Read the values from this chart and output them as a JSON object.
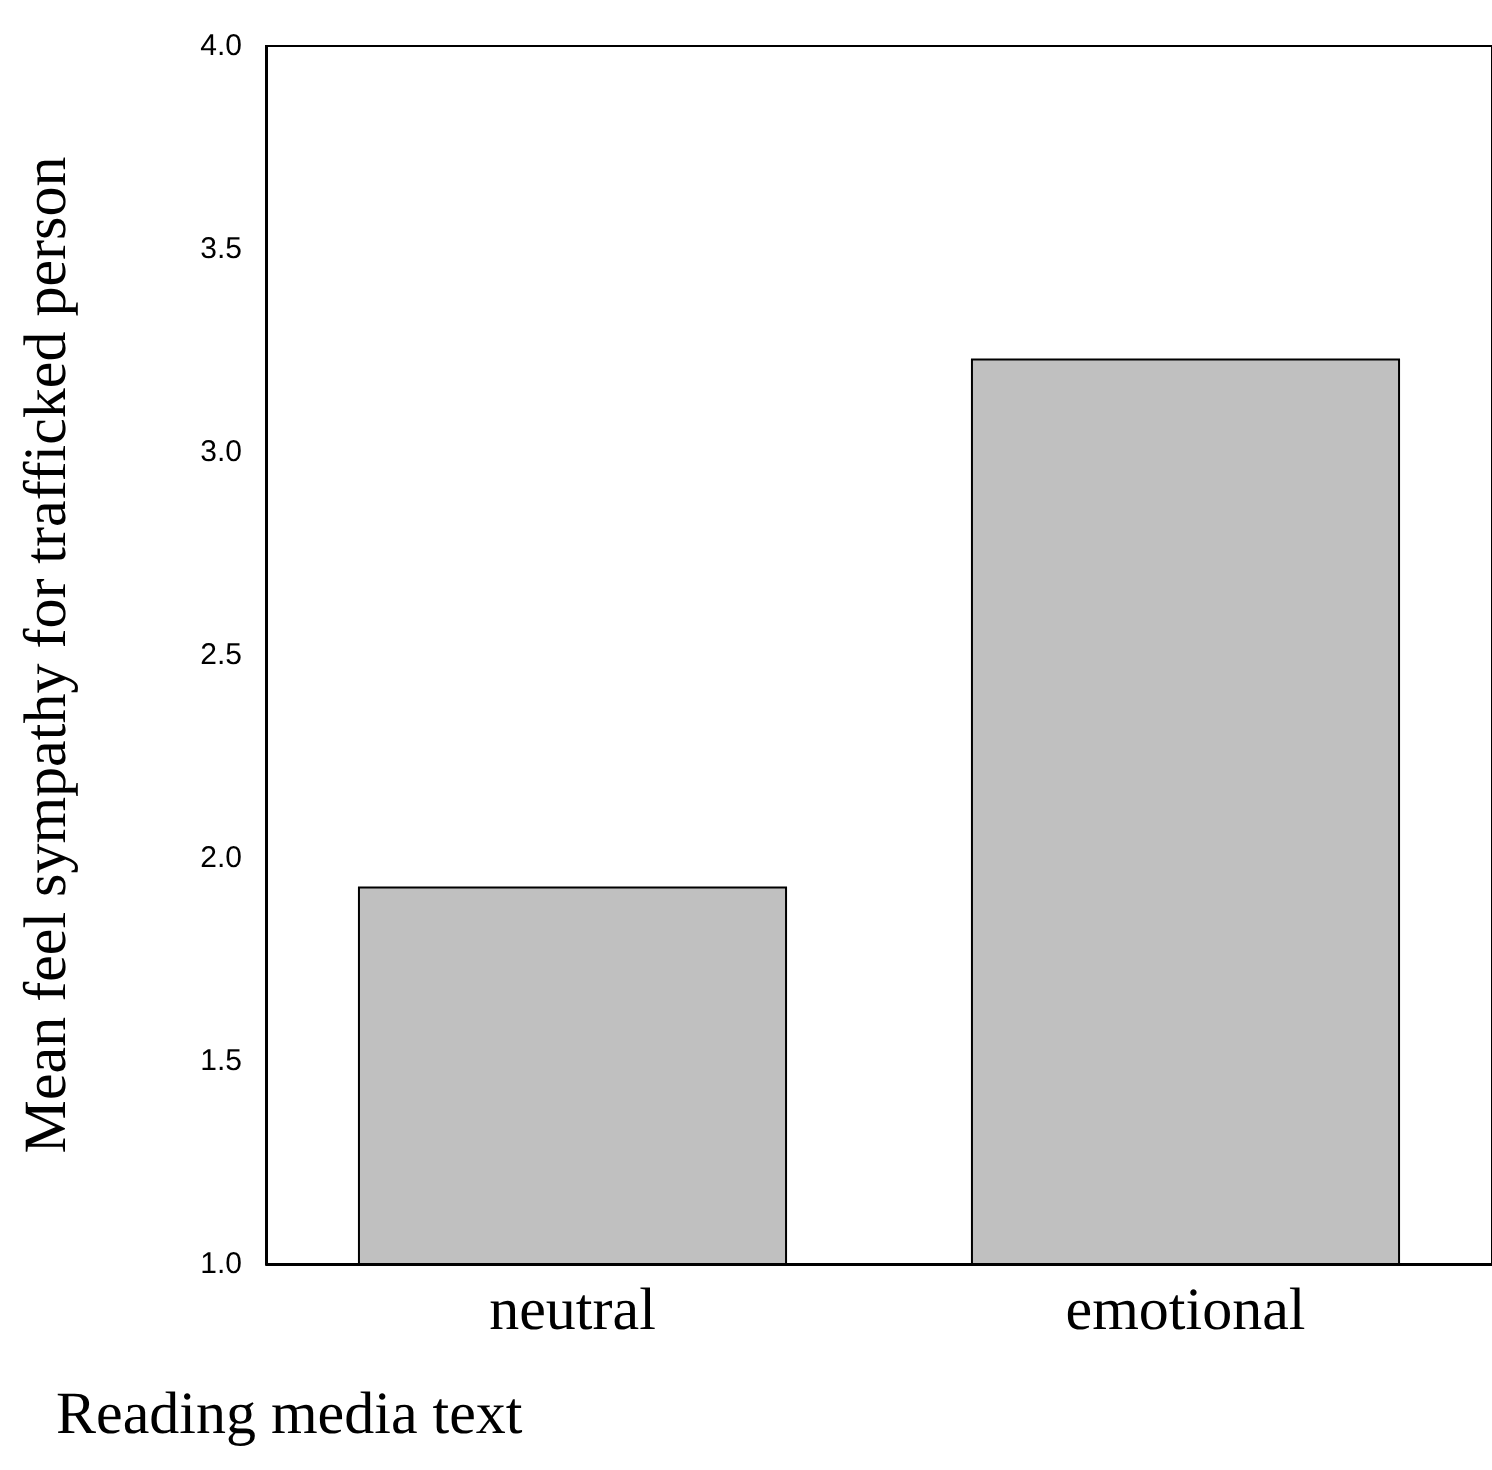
{
  "chart_data": {
    "type": "bar",
    "xlabel": "Reading media text",
    "ylabel": "Mean feel sympathy for trafficked person",
    "categories": [
      "neutral",
      "emotional"
    ],
    "values": [
      1.93,
      3.23
    ],
    "color": "#c0c0c0",
    "ylim": [
      1.0,
      4.0
    ],
    "yticks": [
      {
        "value": 1.0,
        "label": "1.0"
      },
      {
        "value": 1.5,
        "label": "1.5"
      },
      {
        "value": 2.0,
        "label": "2.0"
      },
      {
        "value": 2.5,
        "label": "2.5"
      },
      {
        "value": 3.0,
        "label": "3.0"
      },
      {
        "value": 3.5,
        "label": "3.5"
      },
      {
        "value": 4.0,
        "label": "4.0"
      }
    ],
    "grid": false
  }
}
